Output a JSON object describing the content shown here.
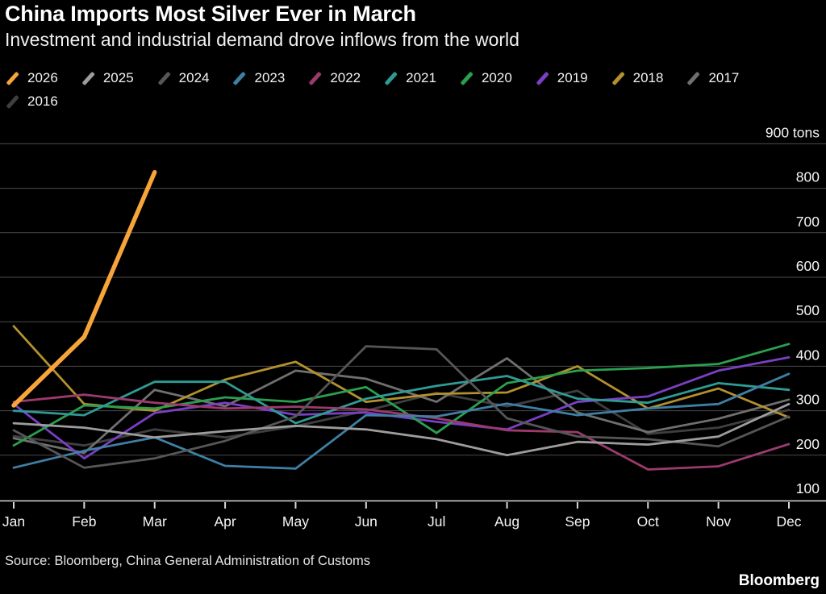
{
  "header": {
    "title": "China Imports Most Silver Ever in March",
    "subtitle": "Investment and industrial demand drove inflows from the world"
  },
  "footer": {
    "source": "Source: Bloomberg, China General Administration of Customs",
    "brand": "Bloomberg"
  },
  "chart_data": {
    "type": "line",
    "title": "China Imports Most Silver Ever in March",
    "unit": "tons",
    "grid": "horizontal",
    "legend_position": "top",
    "categories": [
      "Jan",
      "Feb",
      "Mar",
      "Apr",
      "May",
      "Jun",
      "Jul",
      "Aug",
      "Sep",
      "Oct",
      "Nov",
      "Dec"
    ],
    "ylim": [
      100,
      900
    ],
    "y_ticks": [
      {
        "value": 900,
        "label": "900 tons"
      },
      {
        "value": 800,
        "label": "800"
      },
      {
        "value": 700,
        "label": "700"
      },
      {
        "value": 600,
        "label": "600"
      },
      {
        "value": 500,
        "label": "500"
      },
      {
        "value": 400,
        "label": "400"
      },
      {
        "value": 300,
        "label": "300"
      },
      {
        "value": 200,
        "label": "200"
      },
      {
        "value": 100,
        "label": "100"
      }
    ],
    "series": [
      {
        "name": "2026",
        "color": "#f7a43a",
        "emphasis": true,
        "values": [
          312,
          466,
          836,
          null,
          null,
          null,
          null,
          null,
          null,
          null,
          null,
          null
        ]
      },
      {
        "name": "2025",
        "color": "#9d9d9d",
        "emphasis": false,
        "values": [
          272,
          262,
          240,
          254,
          266,
          258,
          236,
          200,
          230,
          224,
          242,
          315
        ]
      },
      {
        "name": "2024",
        "color": "#565656",
        "emphasis": false,
        "values": [
          256,
          172,
          193,
          232,
          287,
          445,
          438,
          283,
          242,
          236,
          220,
          287
        ]
      },
      {
        "name": "2023",
        "color": "#3f7fa6",
        "emphasis": false,
        "values": [
          172,
          210,
          240,
          176,
          170,
          290,
          287,
          316,
          290,
          305,
          315,
          383
        ]
      },
      {
        "name": "2022",
        "color": "#9c3a6d",
        "emphasis": false,
        "values": [
          320,
          336,
          318,
          305,
          309,
          303,
          283,
          256,
          252,
          168,
          175,
          225
        ]
      },
      {
        "name": "2021",
        "color": "#2f9b95",
        "emphasis": false,
        "values": [
          300,
          290,
          365,
          365,
          272,
          327,
          356,
          378,
          327,
          318,
          362,
          347
        ]
      },
      {
        "name": "2020",
        "color": "#2aa04f",
        "emphasis": false,
        "values": [
          222,
          312,
          305,
          330,
          320,
          353,
          250,
          362,
          390,
          396,
          405,
          450
        ]
      },
      {
        "name": "2019",
        "color": "#7a3fc4",
        "emphasis": false,
        "values": [
          315,
          193,
          295,
          318,
          291,
          296,
          275,
          258,
          320,
          332,
          390,
          420
        ]
      },
      {
        "name": "2018",
        "color": "#b3912c",
        "emphasis": false,
        "values": [
          490,
          315,
          300,
          370,
          410,
          320,
          338,
          341,
          400,
          305,
          350,
          285
        ]
      },
      {
        "name": "2017",
        "color": "#6f6f6f",
        "emphasis": false,
        "values": [
          238,
          205,
          347,
          310,
          390,
          372,
          320,
          418,
          296,
          252,
          282,
          325
        ]
      },
      {
        "name": "2016",
        "color": "#3f3f3f",
        "emphasis": false,
        "values": [
          243,
          222,
          258,
          240,
          265,
          300,
          340,
          310,
          345,
          248,
          262,
          302
        ]
      }
    ]
  }
}
